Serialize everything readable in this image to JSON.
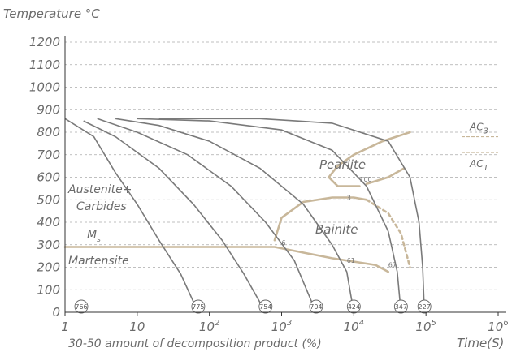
{
  "chart_data": {
    "type": "line",
    "title": "",
    "ylabel": "Temperature °C",
    "xlabel": "Time(S)",
    "footer_label": "30-50 amount of decomposition product (%)",
    "x_scale": "log",
    "xlim": [
      1,
      1000000
    ],
    "ylim": [
      0,
      1200
    ],
    "y_ticks": [
      "0",
      "100",
      "200",
      "300",
      "400",
      "500",
      "600",
      "700",
      "800",
      "900",
      "1000",
      "1100",
      "1200"
    ],
    "x_ticks": [
      {
        "base": "1",
        "exp": ""
      },
      {
        "base": "10",
        "exp": ""
      },
      {
        "base": "10",
        "exp": "2"
      },
      {
        "base": "10",
        "exp": "3"
      },
      {
        "base": "10",
        "exp": "4"
      },
      {
        "base": "10",
        "exp": "5"
      },
      {
        "base": "10",
        "exp": "6"
      }
    ],
    "grid": "horizontal-dashed",
    "cooling_curves": [
      {
        "hardness": "766",
        "points": [
          [
            1,
            0
          ]
        ]
      },
      {
        "hardness": "775",
        "points": [
          [
            1,
            860
          ],
          [
            2.5,
            780
          ],
          [
            5,
            620
          ],
          [
            10,
            480
          ],
          [
            20,
            320
          ],
          [
            40,
            170
          ],
          [
            70,
            0
          ]
        ]
      },
      {
        "hardness": "754",
        "points": [
          [
            1.8,
            850
          ],
          [
            5,
            780
          ],
          [
            20,
            640
          ],
          [
            60,
            480
          ],
          [
            150,
            320
          ],
          [
            300,
            170
          ],
          [
            600,
            0
          ]
        ]
      },
      {
        "hardness": "704",
        "points": [
          [
            2.8,
            860
          ],
          [
            10,
            800
          ],
          [
            50,
            700
          ],
          [
            200,
            560
          ],
          [
            600,
            400
          ],
          [
            1500,
            230
          ],
          [
            3000,
            0
          ]
        ]
      },
      {
        "hardness": "424",
        "points": [
          [
            5,
            860
          ],
          [
            20,
            830
          ],
          [
            100,
            760
          ],
          [
            500,
            640
          ],
          [
            2000,
            480
          ],
          [
            5000,
            300
          ],
          [
            8000,
            180
          ],
          [
            10000,
            0
          ]
        ]
      },
      {
        "hardness": "347",
        "points": [
          [
            10,
            860
          ],
          [
            100,
            850
          ],
          [
            1000,
            810
          ],
          [
            5000,
            720
          ],
          [
            15000,
            560
          ],
          [
            30000,
            360
          ],
          [
            40000,
            180
          ],
          [
            45000,
            0
          ]
        ]
      },
      {
        "hardness": "227",
        "points": [
          [
            20,
            860
          ],
          [
            500,
            860
          ],
          [
            5000,
            840
          ],
          [
            30000,
            760
          ],
          [
            60000,
            600
          ],
          [
            80000,
            400
          ],
          [
            90000,
            200
          ],
          [
            95000,
            0
          ]
        ]
      }
    ],
    "transformation_curves": [
      {
        "name": "pearlite-start",
        "points": [
          [
            60000,
            800
          ],
          [
            25000,
            760
          ],
          [
            10000,
            700
          ],
          [
            6000,
            650
          ],
          [
            4500,
            600
          ],
          [
            6000,
            560
          ],
          [
            12000,
            560
          ]
        ]
      },
      {
        "name": "pearlite-finish",
        "points": [
          [
            50000,
            640
          ],
          [
            30000,
            600
          ],
          [
            15000,
            570
          ]
        ]
      },
      {
        "name": "bainite-start",
        "points": [
          [
            800,
            320
          ],
          [
            1000,
            420
          ],
          [
            2000,
            490
          ],
          [
            5000,
            510
          ],
          [
            10000,
            510
          ],
          [
            15000,
            500
          ]
        ]
      },
      {
        "name": "bainite-finish",
        "points": [
          [
            15000,
            500
          ],
          [
            30000,
            440
          ],
          [
            45000,
            350
          ],
          [
            60000,
            200
          ]
        ]
      },
      {
        "name": "ms-line",
        "points": [
          [
            1,
            290
          ],
          [
            800,
            290
          ],
          [
            5000,
            240
          ],
          [
            20000,
            210
          ],
          [
            30000,
            180
          ]
        ]
      }
    ],
    "percent_labels": [
      {
        "text": "100",
        "x": 12000,
        "y": 580
      },
      {
        "text": "3",
        "x": 8000,
        "y": 500
      },
      {
        "text": "6",
        "x": 1000,
        "y": 300
      },
      {
        "text": "61",
        "x": 8000,
        "y": 220
      },
      {
        "text": "67",
        "x": 30000,
        "y": 200
      }
    ],
    "ac_lines": [
      {
        "label": "AC",
        "sub": "3",
        "y": 780
      },
      {
        "label": "AC",
        "sub": "1",
        "y": 710
      }
    ],
    "regions": {
      "pearlite": "Pearlite",
      "bainite": "Bainite",
      "austenite_line1": "Austenite+",
      "austenite_line2": "Carbides",
      "ms_main": "M",
      "ms_sub": "s",
      "martensite": "Martensite"
    }
  },
  "colors": {
    "axis": "#333333",
    "grid": "#aaaaaa",
    "cooling": "#7a7a7a",
    "transformation": "#c8b79a",
    "text": "#6b6b6b"
  }
}
